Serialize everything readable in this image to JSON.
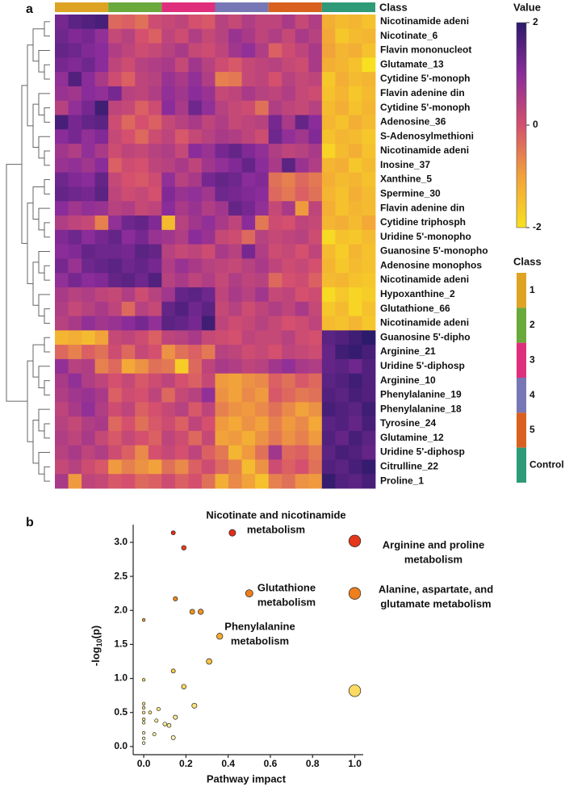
{
  "panel_labels": [
    "a",
    "b"
  ],
  "chart_data": [
    {
      "type": "heatmap",
      "rows": [
        "Nicotinamide adeni",
        "Nicotinate_6",
        "Flavin mononucleot",
        "Glutamate_13",
        "Cytidine 5'-monoph",
        "Flavin adenine din",
        "Cytidine 5'-monoph",
        "Adenosine_36",
        "S-Adenosylmethioni",
        "Nicotinamide adeni",
        "Inosine_37",
        "Xanthine_5",
        "Spermine_30",
        "Flavin adenine din",
        "Cytidine triphosph",
        "Uridine 5'-monopho",
        "Guanosine 5'-monopho",
        "Adenosine monophos",
        "Nicotinamide adeni",
        "Hypoxanthine_2",
        "Glutathione_66",
        "Nicotinamide adeni",
        "Guanosine 5'-dipho",
        "Arginine_21",
        "Uridine 5'-diphosp",
        "Arginine_10",
        "Phenylalanine_19",
        "Phenylalanine_18",
        "Tyrosine_24",
        "Glutamine_12",
        "Uridine 5'-diphosp",
        "Citrulline_22",
        "Proline_1"
      ],
      "values": [
        [
          1.2,
          1.5,
          1.6,
          1.7,
          -0.3,
          -0.2,
          -0.4,
          0.1,
          0.2,
          0.3,
          0.0,
          -0.1,
          0.4,
          0.2,
          0.5,
          0.3,
          0.3,
          0.6,
          0.2,
          0.5,
          -1.2,
          -1.4,
          -1.3,
          -1.5
        ],
        [
          1.3,
          1.1,
          1.2,
          0.9,
          0.2,
          0.4,
          0.0,
          -0.2,
          0.3,
          0.1,
          0.5,
          0.2,
          0.4,
          0.8,
          0.6,
          0.3,
          0.5,
          0.2,
          0.6,
          0.4,
          -1.1,
          -1.6,
          -1.4,
          -1.3
        ],
        [
          1.4,
          1.3,
          1.1,
          1.0,
          0.5,
          0.3,
          0.1,
          0.2,
          0.4,
          0.6,
          0.2,
          0.1,
          0.3,
          0.7,
          0.9,
          0.5,
          -0.2,
          0.1,
          0.3,
          0.6,
          -1.0,
          -1.3,
          -1.2,
          -1.5
        ],
        [
          1.2,
          1.1,
          1.3,
          1.0,
          0.3,
          0.1,
          0.4,
          0.5,
          0.6,
          0.2,
          0.7,
          0.4,
          0.1,
          -0.1,
          0.2,
          0.3,
          0.4,
          0.2,
          0.1,
          0.6,
          -1.2,
          -1.3,
          -1.5,
          -2.0
        ],
        [
          0.9,
          1.6,
          1.0,
          0.6,
          0.1,
          -0.2,
          0.3,
          0.4,
          0.8,
          0.6,
          0.9,
          0.5,
          -0.6,
          -0.5,
          0.2,
          0.3,
          0.0,
          0.4,
          0.2,
          0.3,
          -1.6,
          -1.2,
          -1.4,
          -1.3
        ],
        [
          0.8,
          0.7,
          1.0,
          0.9,
          1.2,
          0.4,
          0.3,
          0.5,
          0.9,
          0.7,
          1.0,
          0.8,
          0.2,
          0.3,
          0.6,
          0.4,
          0.3,
          0.5,
          0.2,
          0.1,
          -1.5,
          -1.3,
          -1.6,
          -1.4
        ],
        [
          0.4,
          0.9,
          1.2,
          1.8,
          0.3,
          0.2,
          -0.2,
          0.1,
          1.0,
          0.6,
          1.3,
          0.9,
          0.4,
          0.2,
          0.1,
          -0.4,
          0.5,
          0.3,
          0.2,
          0.4,
          -1.4,
          -1.2,
          -1.5,
          -1.3
        ],
        [
          1.7,
          1.2,
          1.4,
          1.5,
          0.1,
          -0.3,
          0.0,
          -0.2,
          0.2,
          0.4,
          0.6,
          0.3,
          0.5,
          0.2,
          0.3,
          0.4,
          1.2,
          0.6,
          1.4,
          1.0,
          -1.3,
          -1.5,
          -1.2,
          -1.4
        ],
        [
          1.0,
          1.2,
          0.9,
          1.1,
          0.2,
          0.0,
          -0.3,
          0.1,
          0.3,
          -0.1,
          0.2,
          0.4,
          0.6,
          0.5,
          0.3,
          0.1,
          1.3,
          0.9,
          0.7,
          1.1,
          -1.5,
          -1.3,
          -1.4,
          -1.6
        ],
        [
          0.7,
          0.5,
          0.9,
          0.6,
          0.1,
          0.3,
          0.2,
          0.4,
          0.5,
          0.2,
          1.0,
          0.8,
          1.2,
          1.4,
          1.1,
          0.9,
          0.5,
          0.3,
          0.4,
          0.6,
          -1.8,
          -1.4,
          -1.2,
          -1.5
        ],
        [
          0.8,
          0.9,
          0.7,
          1.0,
          -0.2,
          0.1,
          0.0,
          0.3,
          0.4,
          0.6,
          0.3,
          0.7,
          0.9,
          1.1,
          1.4,
          1.0,
          0.6,
          1.5,
          0.8,
          0.5,
          -1.3,
          -1.2,
          -1.6,
          -1.4
        ],
        [
          1.3,
          1.1,
          1.0,
          1.4,
          0.2,
          0.0,
          -0.1,
          0.1,
          0.9,
          0.4,
          0.6,
          1.2,
          1.4,
          1.3,
          1.0,
          1.1,
          -0.4,
          -0.6,
          -0.3,
          -0.5,
          -1.2,
          -1.4,
          -1.3,
          -1.5
        ],
        [
          1.4,
          1.3,
          1.2,
          1.5,
          0.3,
          0.1,
          0.2,
          0.0,
          1.1,
          0.8,
          0.9,
          0.7,
          1.3,
          1.2,
          1.1,
          1.0,
          -0.3,
          -0.5,
          -0.2,
          -0.4,
          -1.3,
          -1.5,
          -1.2,
          -1.4
        ],
        [
          1.0,
          0.7,
          0.9,
          0.8,
          0.4,
          0.5,
          0.2,
          0.3,
          1.0,
          0.6,
          0.8,
          0.5,
          0.7,
          1.4,
          1.2,
          0.9,
          0.2,
          0.6,
          -0.9,
          0.3,
          -1.2,
          -1.5,
          -1.3,
          -1.4
        ],
        [
          0.5,
          0.3,
          0.2,
          -0.6,
          0.9,
          1.3,
          1.4,
          1.1,
          -1.4,
          0.4,
          0.7,
          0.9,
          0.6,
          0.3,
          1.0,
          -0.5,
          0.1,
          0.0,
          0.3,
          0.2,
          -1.3,
          -1.2,
          -1.4,
          -1.1
        ],
        [
          1.1,
          1.3,
          1.0,
          1.2,
          1.4,
          1.0,
          1.2,
          0.8,
          0.7,
          0.5,
          1.0,
          0.8,
          0.2,
          0.1,
          -0.3,
          0.4,
          0.2,
          0.3,
          0.4,
          0.1,
          -1.9,
          -1.5,
          -1.6,
          -1.4
        ],
        [
          1.0,
          1.1,
          1.4,
          1.3,
          1.3,
          1.2,
          1.5,
          1.4,
          0.4,
          0.2,
          0.3,
          0.1,
          0.6,
          0.4,
          1.2,
          0.5,
          0.1,
          0.2,
          0.0,
          0.3,
          -1.4,
          -1.7,
          -1.3,
          -1.5
        ],
        [
          1.2,
          0.8,
          1.3,
          1.4,
          1.5,
          1.3,
          1.4,
          1.2,
          0.5,
          0.8,
          0.6,
          0.4,
          0.3,
          0.2,
          0.4,
          0.6,
          0.3,
          0.1,
          0.2,
          0.0,
          -1.3,
          -1.6,
          -1.4,
          -1.5
        ],
        [
          0.9,
          1.2,
          1.0,
          1.1,
          1.4,
          1.5,
          1.3,
          1.6,
          0.4,
          0.6,
          0.3,
          0.5,
          0.2,
          0.5,
          0.3,
          0.4,
          -0.3,
          0.0,
          0.1,
          -0.2,
          -1.4,
          -1.3,
          -1.5,
          -1.6
        ],
        [
          0.6,
          0.4,
          0.5,
          0.3,
          0.2,
          0.5,
          0.1,
          0.4,
          0.7,
          1.4,
          1.5,
          1.3,
          0.3,
          0.6,
          0.4,
          0.7,
          0.2,
          0.3,
          0.0,
          0.1,
          -1.9,
          -1.6,
          -1.8,
          -1.7
        ],
        [
          0.5,
          0.2,
          0.4,
          0.6,
          0.3,
          -0.3,
          0.4,
          0.2,
          1.4,
          1.6,
          1.3,
          1.5,
          0.2,
          0.4,
          0.1,
          0.3,
          0.5,
          0.3,
          0.6,
          0.2,
          -1.6,
          -1.4,
          -1.8,
          -1.5
        ],
        [
          0.4,
          0.6,
          0.9,
          0.7,
          0.8,
          1.0,
          1.2,
          0.9,
          1.5,
          1.4,
          1.2,
          1.8,
          0.3,
          0.1,
          0.2,
          0.4,
          0.2,
          0.0,
          0.1,
          0.3,
          -1.4,
          -1.5,
          -1.3,
          -1.6
        ],
        [
          -1.3,
          -1.2,
          -1.4,
          -1.0,
          0.2,
          0.3,
          0.1,
          -0.2,
          0.3,
          0.4,
          0.6,
          0.2,
          0.1,
          0.0,
          0.3,
          0.2,
          0.2,
          0.4,
          0.1,
          0.0,
          1.5,
          1.6,
          1.8,
          2.2
        ],
        [
          -0.3,
          -0.6,
          -0.2,
          -0.4,
          0.1,
          -0.3,
          0.2,
          0.0,
          -0.8,
          -0.4,
          -0.2,
          -0.5,
          0.4,
          0.3,
          0.1,
          0.2,
          0.0,
          0.3,
          0.2,
          0.1,
          1.4,
          1.8,
          1.9,
          1.7
        ],
        [
          0.9,
          0.4,
          0.5,
          -0.6,
          -0.3,
          -1.1,
          -0.8,
          -0.4,
          -0.5,
          -1.7,
          -0.3,
          0.3,
          0.6,
          0.5,
          0.3,
          0.4,
          0.7,
          0.9,
          0.6,
          0.5,
          1.4,
          1.5,
          1.3,
          1.6
        ],
        [
          0.6,
          0.9,
          0.5,
          0.3,
          0.0,
          0.2,
          -0.1,
          0.1,
          0.3,
          0.0,
          -0.2,
          0.2,
          -0.9,
          -1.0,
          -0.8,
          -0.7,
          -0.2,
          -0.4,
          -0.1,
          -0.3,
          1.5,
          1.6,
          1.8,
          1.6
        ],
        [
          0.5,
          0.7,
          0.8,
          0.6,
          -0.2,
          0.1,
          0.0,
          0.3,
          -0.3,
          0.2,
          0.4,
          0.9,
          -0.8,
          -1.0,
          -0.7,
          -0.9,
          -0.1,
          -0.3,
          -0.5,
          -0.4,
          1.6,
          1.5,
          1.7,
          1.6
        ],
        [
          0.3,
          0.6,
          0.9,
          0.5,
          0.1,
          0.3,
          -0.2,
          0.0,
          0.2,
          0.4,
          -0.1,
          0.3,
          -0.6,
          -0.8,
          -0.9,
          -0.7,
          -0.4,
          -0.7,
          -1.0,
          -0.8,
          1.7,
          1.6,
          1.5,
          1.8
        ],
        [
          0.4,
          0.2,
          0.5,
          0.6,
          -0.3,
          0.0,
          -0.4,
          -0.1,
          0.1,
          -0.2,
          0.3,
          0.0,
          -0.9,
          -1.1,
          -0.8,
          -1.0,
          -0.6,
          -0.9,
          -0.7,
          -1.1,
          1.5,
          1.6,
          1.4,
          1.7
        ],
        [
          0.5,
          0.3,
          0.6,
          0.2,
          -0.1,
          0.2,
          0.0,
          -0.2,
          0.3,
          0.1,
          -0.3,
          0.2,
          -1.0,
          -0.9,
          -1.2,
          -0.8,
          -0.5,
          -0.8,
          -0.6,
          -0.9,
          1.6,
          1.4,
          1.7,
          1.5
        ],
        [
          0.4,
          0.6,
          0.3,
          0.5,
          0.1,
          -0.2,
          -0.7,
          0.0,
          0.2,
          0.0,
          0.3,
          -0.2,
          -0.5,
          -1.3,
          -0.9,
          -0.4,
          0.7,
          -0.3,
          -0.2,
          -0.5,
          1.5,
          1.7,
          1.6,
          1.4
        ],
        [
          0.2,
          0.4,
          0.1,
          -0.1,
          -0.9,
          -0.6,
          -0.8,
          -1.0,
          -0.4,
          -0.7,
          -0.2,
          0.1,
          -0.3,
          -0.6,
          -1.4,
          -0.8,
          0.1,
          -0.2,
          0.0,
          -0.4,
          1.6,
          1.5,
          1.7,
          1.9
        ],
        [
          0.6,
          -0.9,
          0.3,
          0.2,
          -0.1,
          0.0,
          -0.3,
          -0.2,
          0.1,
          -0.2,
          0.0,
          -0.4,
          -1.2,
          -0.7,
          -1.0,
          -1.5,
          -0.6,
          -0.4,
          -0.8,
          -0.9,
          1.9,
          1.6,
          1.5,
          1.7
        ]
      ],
      "zlim": [
        -2,
        2
      ],
      "zticks": [
        -2,
        0,
        2
      ],
      "legend_title": "Value",
      "colorscale": [
        "#f8e020",
        "#f2a23a",
        "#d4506e",
        "#8a2c9a",
        "#2c1a6a"
      ],
      "class_title": "Class",
      "classes": [
        "1",
        "2",
        "3",
        "4",
        "5",
        "Control"
      ],
      "class_colors": [
        "#dfa323",
        "#6aa93b",
        "#df2f7c",
        "#7777b6",
        "#d9601f",
        "#2e9a78"
      ]
    },
    {
      "type": "scatter",
      "x": [
        0.14,
        0.19,
        0.42,
        1.0,
        0.15,
        0.23,
        0.27,
        0.5,
        1.0,
        0.36,
        0.31,
        0.14,
        0.19,
        0.24,
        1.0,
        0,
        0,
        0,
        0,
        0,
        0,
        0,
        0,
        0,
        0,
        0.03,
        0.07,
        0.06,
        0.1,
        0.12,
        0.15,
        0.14,
        0.05
      ],
      "y": [
        3.14,
        2.92,
        3.14,
        3.02,
        2.17,
        1.98,
        1.98,
        2.25,
        2.25,
        1.62,
        1.25,
        1.11,
        0.88,
        0.6,
        0.82,
        1.86,
        0.98,
        0.63,
        0.57,
        0.5,
        0.4,
        0.35,
        0.2,
        0.12,
        0.05,
        0.5,
        0.55,
        0.38,
        0.33,
        0.31,
        0.43,
        0.13,
        0.18
      ],
      "xlim": [
        -0.05,
        1.04
      ],
      "ylim": [
        -0.12,
        3.26
      ],
      "xticks": [
        {
          "value": 0,
          "label": "0.0"
        },
        0.2,
        0.4,
        0.6,
        0.8,
        {
          "value": 1,
          "label": "1.0"
        }
      ],
      "yticks": [
        {
          "value": 0,
          "label": "0.0"
        },
        0.5,
        {
          "value": 1,
          "label": "1.0"
        },
        1.5,
        {
          "value": 2,
          "label": "2.0"
        },
        2.5,
        {
          "value": 3,
          "label": "3.0"
        }
      ],
      "xlabel": "Pathway impact",
      "ylabel": [
        "-log",
        "10",
        "(p)"
      ],
      "colorscale": [
        "#ffffd0",
        "#fcd24a",
        "#f08a1c",
        "#e0221a"
      ],
      "annotations": [
        [
          "Nicotinate and nicotinamide",
          "metabolism"
        ],
        [
          "Arginine and proline",
          "metabolism"
        ],
        [
          "Glutathione",
          "metabolism"
        ],
        [
          "Alanine, aspartate, and",
          "glutamate metabolism"
        ],
        [
          "Phenylalanine",
          "metabolism"
        ]
      ]
    }
  ]
}
